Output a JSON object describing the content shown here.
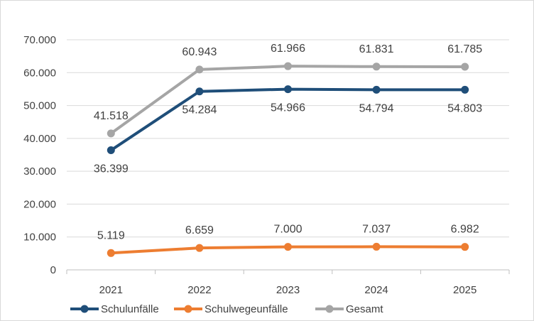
{
  "chart_data": {
    "type": "line",
    "categories": [
      "2021",
      "2022",
      "2023",
      "2024",
      "2025"
    ],
    "ylim": [
      0,
      70000
    ],
    "yticks": [
      0,
      10000,
      20000,
      30000,
      40000,
      50000,
      60000,
      70000
    ],
    "ytick_labels": [
      "0",
      "10.000",
      "20.000",
      "30.000",
      "40.000",
      "50.000",
      "60.000",
      "70.000"
    ],
    "grid": true,
    "legend_position": "bottom-left",
    "series": [
      {
        "name": "Schulunfälle",
        "color": "#1f4e79",
        "values": [
          36399,
          54284,
          54966,
          54794,
          54803
        ],
        "labels": [
          "36.399",
          "54.284",
          "54.966",
          "54.794",
          "54.803"
        ],
        "label_position": "below"
      },
      {
        "name": "Schulwegeunfälle",
        "color": "#ed7d31",
        "values": [
          5119,
          6659,
          7000,
          7037,
          6982
        ],
        "labels": [
          "5.119",
          "6.659",
          "7.000",
          "7.037",
          "6.982"
        ],
        "label_position": "above"
      },
      {
        "name": "Gesamt",
        "color": "#a5a5a5",
        "values": [
          41518,
          60943,
          61966,
          61831,
          61785
        ],
        "labels": [
          "41.518",
          "60.943",
          "61.966",
          "61.831",
          "61.785"
        ],
        "label_position": "above"
      }
    ]
  }
}
